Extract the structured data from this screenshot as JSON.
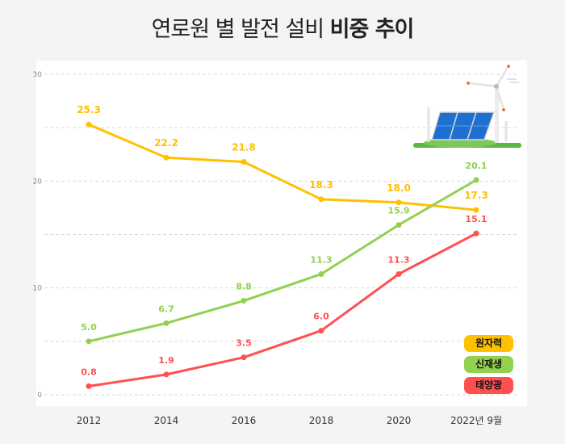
{
  "title": {
    "regular": "연로원 별 발전 설비",
    "bold": "비중 추이"
  },
  "chart_data": {
    "type": "line",
    "title": "연로원 별 발전 설비 비중 추이",
    "categories": [
      "2012",
      "2014",
      "2016",
      "2018",
      "2020",
      "2022년 9월"
    ],
    "ylim": [
      0,
      30
    ],
    "yticks": [
      0,
      10,
      20,
      30
    ],
    "grid": true,
    "legend_position": "bottom-right",
    "series": [
      {
        "name": "원자력",
        "color": "#ffc000",
        "values": [
          25.3,
          22.2,
          21.8,
          18.3,
          18.0,
          17.3
        ],
        "labels": [
          "25.3",
          "22.2",
          "21.8",
          "18.3",
          "18.0",
          "17.3"
        ]
      },
      {
        "name": "신재생",
        "color": "#92d050",
        "values": [
          5.0,
          6.7,
          8.8,
          11.3,
          15.9,
          20.1
        ],
        "labels": [
          "5.0",
          "6.7",
          "8.8",
          "11.3",
          "15.9",
          "20.1"
        ]
      },
      {
        "name": "태양광",
        "color": "#ff5050",
        "values": [
          0.8,
          1.9,
          3.5,
          6.0,
          11.3,
          15.1
        ],
        "labels": [
          "0.8",
          "1.9",
          "3.5",
          "6.0",
          "11.3",
          "15.1"
        ]
      }
    ]
  },
  "illustration": "solar-panel-wind-turbine-icon"
}
